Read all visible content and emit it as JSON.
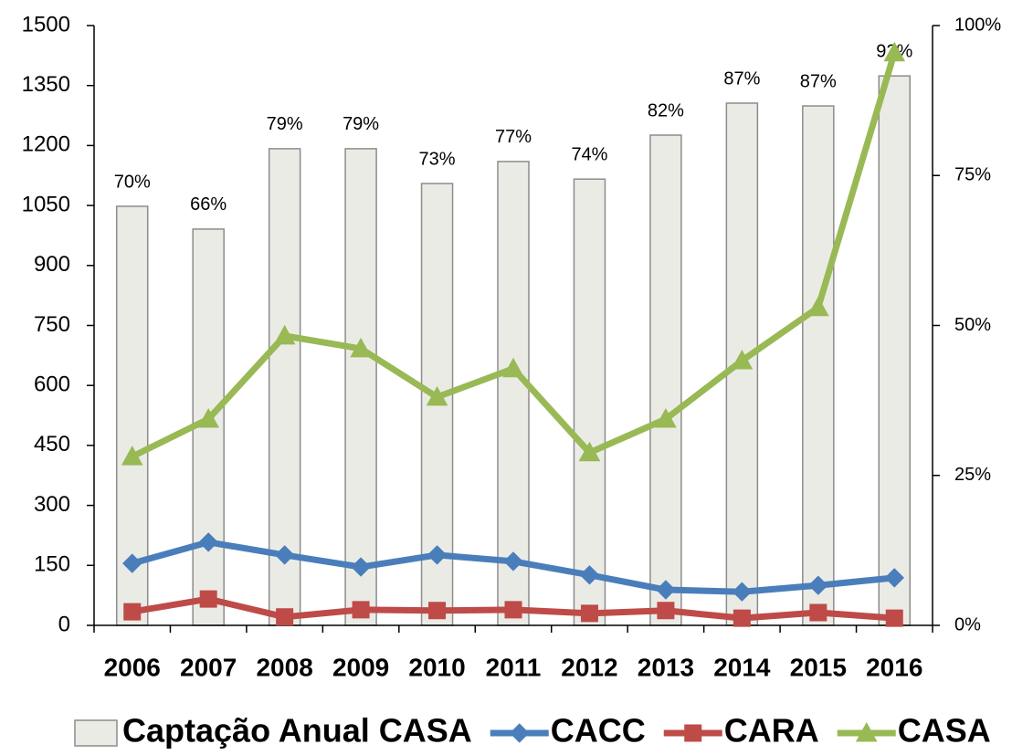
{
  "chart_data": {
    "type": "bar_line",
    "categories": [
      "2006",
      "2007",
      "2008",
      "2009",
      "2010",
      "2011",
      "2012",
      "2013",
      "2014",
      "2015",
      "2016"
    ],
    "bars": {
      "name": "Captação Anual CASA",
      "color": "#ebebe6",
      "stroke": "#8c8c8c",
      "values": [
        1048,
        991,
        1192,
        1192,
        1105,
        1160,
        1116,
        1226,
        1306,
        1299,
        1374
      ],
      "annotations": [
        "70%",
        "66%",
        "79%",
        "79%",
        "73%",
        "77%",
        "74%",
        "82%",
        "87%",
        "87%",
        "92%"
      ]
    },
    "series": [
      {
        "name": "CACC",
        "color": "#4a7ebb",
        "marker": "diamond",
        "values": [
          155,
          208,
          176,
          146,
          176,
          160,
          126,
          89,
          84,
          100,
          119
        ]
      },
      {
        "name": "CARA",
        "color": "#be4b48",
        "marker": "square",
        "values": [
          34,
          66,
          21,
          39,
          37,
          39,
          30,
          37,
          18,
          32,
          18
        ]
      },
      {
        "name": "CASA",
        "color": "#98b954",
        "marker": "triangle",
        "values": [
          422,
          516,
          724,
          692,
          571,
          642,
          432,
          516,
          662,
          795,
          1432
        ]
      }
    ],
    "ylim": [
      0,
      1500
    ],
    "yticks": [
      0,
      150,
      300,
      450,
      600,
      750,
      900,
      1050,
      1200,
      1350,
      1500
    ],
    "y2lim": [
      0,
      100
    ],
    "y2ticks": [
      {
        "value": 0,
        "label": "0%"
      },
      {
        "value": 25,
        "label": "25%"
      },
      {
        "value": 50,
        "label": "50%"
      },
      {
        "value": 75,
        "label": "75%"
      },
      {
        "value": 100,
        "label": "100%"
      }
    ]
  }
}
